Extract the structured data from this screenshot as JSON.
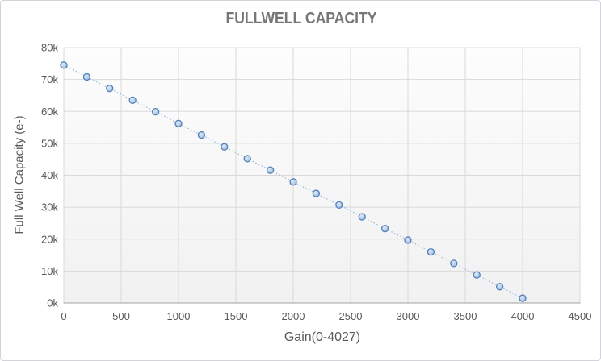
{
  "window": {
    "background": "#ffffff",
    "border_color": "#d3d3d8"
  },
  "chart_data": {
    "type": "line",
    "title": "FULLWELL CAPACITY",
    "xlabel": "Gain(0-4027)",
    "ylabel": "Full Well Capacity (e-)",
    "x": [
      0,
      200,
      400,
      600,
      800,
      1000,
      1200,
      1400,
      1600,
      1800,
      2000,
      2200,
      2400,
      2600,
      2800,
      3000,
      3200,
      3400,
      3600,
      3800,
      4000
    ],
    "y_k": [
      74.5,
      70.8,
      67.2,
      63.5,
      59.9,
      56.2,
      52.6,
      48.9,
      45.2,
      41.6,
      37.9,
      34.3,
      30.7,
      27.0,
      23.3,
      19.7,
      16.0,
      12.4,
      8.8,
      5.1,
      1.5
    ],
    "y_unit": "k electrons",
    "xlim": [
      0,
      4500
    ],
    "ylim_k": [
      0,
      80
    ],
    "y_tick_step_k": 10,
    "x_ticks": [
      0,
      500,
      1000,
      1500,
      2000,
      2500,
      3000,
      3500,
      4000,
      4500
    ],
    "y_ticks": [
      "0k",
      "10k",
      "20k",
      "30k",
      "40k",
      "50k",
      "60k",
      "70k",
      "80k"
    ],
    "grid": "on",
    "legend": "none",
    "line_style": "dotted",
    "marker": "circle",
    "colors": {
      "title_text": "#767676",
      "axis_text": "#595959",
      "gridline": "#d9d9d9",
      "axis_line": "#b3b3b3",
      "marker_stroke": "#4f81bd",
      "marker_fill": "#b8cce4",
      "marker_fill_light": "#dde9f6",
      "marker_fill_dark": "#8fb0d9",
      "line": "#a0bbdf",
      "plot_bg_top": "#fdfdfd",
      "plot_bg_bottom": "#f1f1f2"
    }
  }
}
